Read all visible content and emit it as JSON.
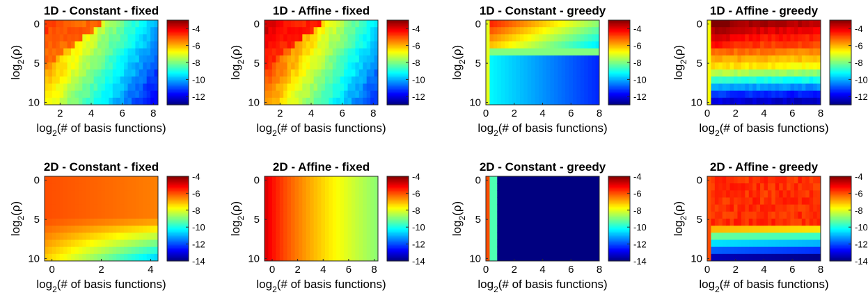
{
  "colormap": "jet",
  "chart_data": [
    {
      "type": "heatmap",
      "title": "1D - Constant - fixed",
      "xlabel_base": "log",
      "xlabel_sub": "2",
      "xlabel_rest": "(# of basis functions)",
      "ylabel_base": "log",
      "ylabel_sub": "2",
      "ylabel_rest": "(ρ)",
      "xlim": [
        1,
        8.3
      ],
      "ylim": [
        -0.5,
        10.3
      ],
      "xticks": [
        "2",
        "4",
        "6",
        "8"
      ],
      "yticks": [
        "0",
        "5",
        "10"
      ],
      "colorbar_ticks": [
        "-4",
        "-6",
        "-8",
        "-10",
        "-12"
      ],
      "clim": [
        -13,
        -3
      ],
      "pattern": "cf1d"
    },
    {
      "type": "heatmap",
      "title": "1D - Affine - fixed",
      "xlabel_base": "log",
      "xlabel_sub": "2",
      "xlabel_rest": "(# of basis functions)",
      "ylabel_base": "log",
      "ylabel_sub": "2",
      "ylabel_rest": "(ρ)",
      "xlim": [
        1,
        8.3
      ],
      "ylim": [
        -0.5,
        10.3
      ],
      "xticks": [
        "2",
        "4",
        "6",
        "8"
      ],
      "yticks": [
        "0",
        "5",
        "10"
      ],
      "colorbar_ticks": [
        "-4",
        "-6",
        "-8",
        "-10",
        "-12"
      ],
      "clim": [
        -13,
        -3
      ],
      "pattern": "af1d"
    },
    {
      "type": "heatmap",
      "title": "1D - Constant - greedy",
      "xlabel_base": "log",
      "xlabel_sub": "2",
      "xlabel_rest": "(# of basis functions)",
      "ylabel_base": "log",
      "ylabel_sub": "2",
      "ylabel_rest": "(ρ)",
      "xlim": [
        0,
        8
      ],
      "ylim": [
        -0.5,
        10.3
      ],
      "xticks": [
        "0",
        "2",
        "4",
        "6",
        "8"
      ],
      "yticks": [
        "0",
        "5",
        "10"
      ],
      "colorbar_ticks": [
        "-4",
        "-6",
        "-8",
        "-10",
        "-12"
      ],
      "clim": [
        -13,
        -3
      ],
      "pattern": "cg1d"
    },
    {
      "type": "heatmap",
      "title": "1D - Affine - greedy",
      "xlabel_base": "log",
      "xlabel_sub": "2",
      "xlabel_rest": "(# of basis functions)",
      "ylabel_base": "log",
      "ylabel_sub": "2",
      "ylabel_rest": "(ρ)",
      "xlim": [
        0,
        8
      ],
      "ylim": [
        -0.5,
        10.3
      ],
      "xticks": [
        "0",
        "2",
        "4",
        "6",
        "8"
      ],
      "yticks": [
        "0",
        "5",
        "10"
      ],
      "colorbar_ticks": [
        "-4",
        "-6",
        "-8",
        "-10",
        "-12"
      ],
      "clim": [
        -13,
        -3
      ],
      "pattern": "ag1d"
    },
    {
      "type": "heatmap",
      "title": "2D - Constant - fixed",
      "xlabel_base": "log",
      "xlabel_sub": "2",
      "xlabel_rest": "(# of basis functions)",
      "ylabel_base": "log",
      "ylabel_sub": "2",
      "ylabel_rest": "(ρ)",
      "xlim": [
        -0.3,
        4.3
      ],
      "ylim": [
        -0.5,
        10.3
      ],
      "xticks": [
        "0",
        "2",
        "4"
      ],
      "yticks": [
        "0",
        "5",
        "10"
      ],
      "colorbar_ticks": [
        "-4",
        "-6",
        "-8",
        "-10",
        "-12",
        "-14"
      ],
      "clim": [
        -14,
        -4
      ],
      "pattern": "cf2d"
    },
    {
      "type": "heatmap",
      "title": "2D - Affine - fixed",
      "xlabel_base": "log",
      "xlabel_sub": "2",
      "xlabel_rest": "(# of basis functions)",
      "ylabel_base": "log",
      "ylabel_sub": "2",
      "ylabel_rest": "(ρ)",
      "xlim": [
        -0.6,
        8.3
      ],
      "ylim": [
        -0.5,
        10.3
      ],
      "xticks": [
        "0",
        "2",
        "4",
        "6",
        "8"
      ],
      "yticks": [
        "0",
        "5",
        "10"
      ],
      "colorbar_ticks": [
        "-4",
        "-6",
        "-8",
        "-10",
        "-12",
        "-14"
      ],
      "clim": [
        -14,
        -4
      ],
      "pattern": "af2d"
    },
    {
      "type": "heatmap",
      "title": "2D - Constant - greedy",
      "xlabel_base": "log",
      "xlabel_sub": "2",
      "xlabel_rest": "(# of basis functions)",
      "ylabel_base": "log",
      "ylabel_sub": "2",
      "ylabel_rest": "(ρ)",
      "xlim": [
        0,
        8
      ],
      "ylim": [
        -0.5,
        10.3
      ],
      "xticks": [
        "0",
        "2",
        "4",
        "6",
        "8"
      ],
      "yticks": [
        "0",
        "5",
        "10"
      ],
      "colorbar_ticks": [
        "-4",
        "-6",
        "-8",
        "-10",
        "-12",
        "-14"
      ],
      "clim": [
        -14,
        -4
      ],
      "pattern": "cg2d"
    },
    {
      "type": "heatmap",
      "title": "2D - Affine - greedy",
      "xlabel_base": "log",
      "xlabel_sub": "2",
      "xlabel_rest": "(# of basis functions)",
      "ylabel_base": "log",
      "ylabel_sub": "2",
      "ylabel_rest": "(ρ)",
      "xlim": [
        0,
        8
      ],
      "ylim": [
        -0.5,
        10.3
      ],
      "xticks": [
        "0",
        "2",
        "4",
        "6",
        "8"
      ],
      "yticks": [
        "0",
        "5",
        "10"
      ],
      "colorbar_ticks": [
        "-4",
        "-6",
        "-8",
        "-10",
        "-12",
        "-14"
      ],
      "clim": [
        -14,
        -4
      ],
      "pattern": "ag2d"
    }
  ]
}
